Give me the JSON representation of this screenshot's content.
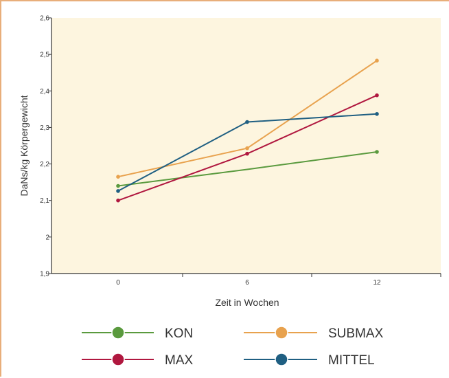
{
  "chart_data": {
    "type": "line",
    "title": "",
    "xlabel": "Zeit in Wochen",
    "ylabel": "DaNs/kg Körpergewicht",
    "x": [
      0,
      6,
      12
    ],
    "x_tick_labels": [
      "0",
      "6",
      "12"
    ],
    "ylim": [
      1.9,
      2.6
    ],
    "y_ticks": [
      1.9,
      2.0,
      2.1,
      2.2,
      2.3,
      2.4,
      2.5,
      2.6
    ],
    "y_tick_labels": [
      "1,9",
      "2",
      "2,1",
      "2,2",
      "2,3",
      "2,4",
      "2,5",
      "2,6"
    ],
    "grid": false,
    "legend_position": "bottom",
    "plot_background": "#fdf5df",
    "series": [
      {
        "name": "KON",
        "color": "#5a9a3e",
        "values": [
          2.14,
          2.185,
          2.233
        ]
      },
      {
        "name": "SUBMAX",
        "color": "#e8a24e",
        "values": [
          2.165,
          2.243,
          2.483
        ]
      },
      {
        "name": "MAX",
        "color": "#b0173f",
        "values": [
          2.1,
          2.228,
          2.388
        ]
      },
      {
        "name": "MITTEL",
        "color": "#1f5f82",
        "values": [
          2.126,
          2.315,
          2.337
        ]
      }
    ],
    "series_markers": [
      [
        true,
        false,
        true
      ],
      [
        true,
        true,
        true
      ],
      [
        true,
        true,
        true
      ],
      [
        true,
        true,
        true
      ]
    ]
  }
}
